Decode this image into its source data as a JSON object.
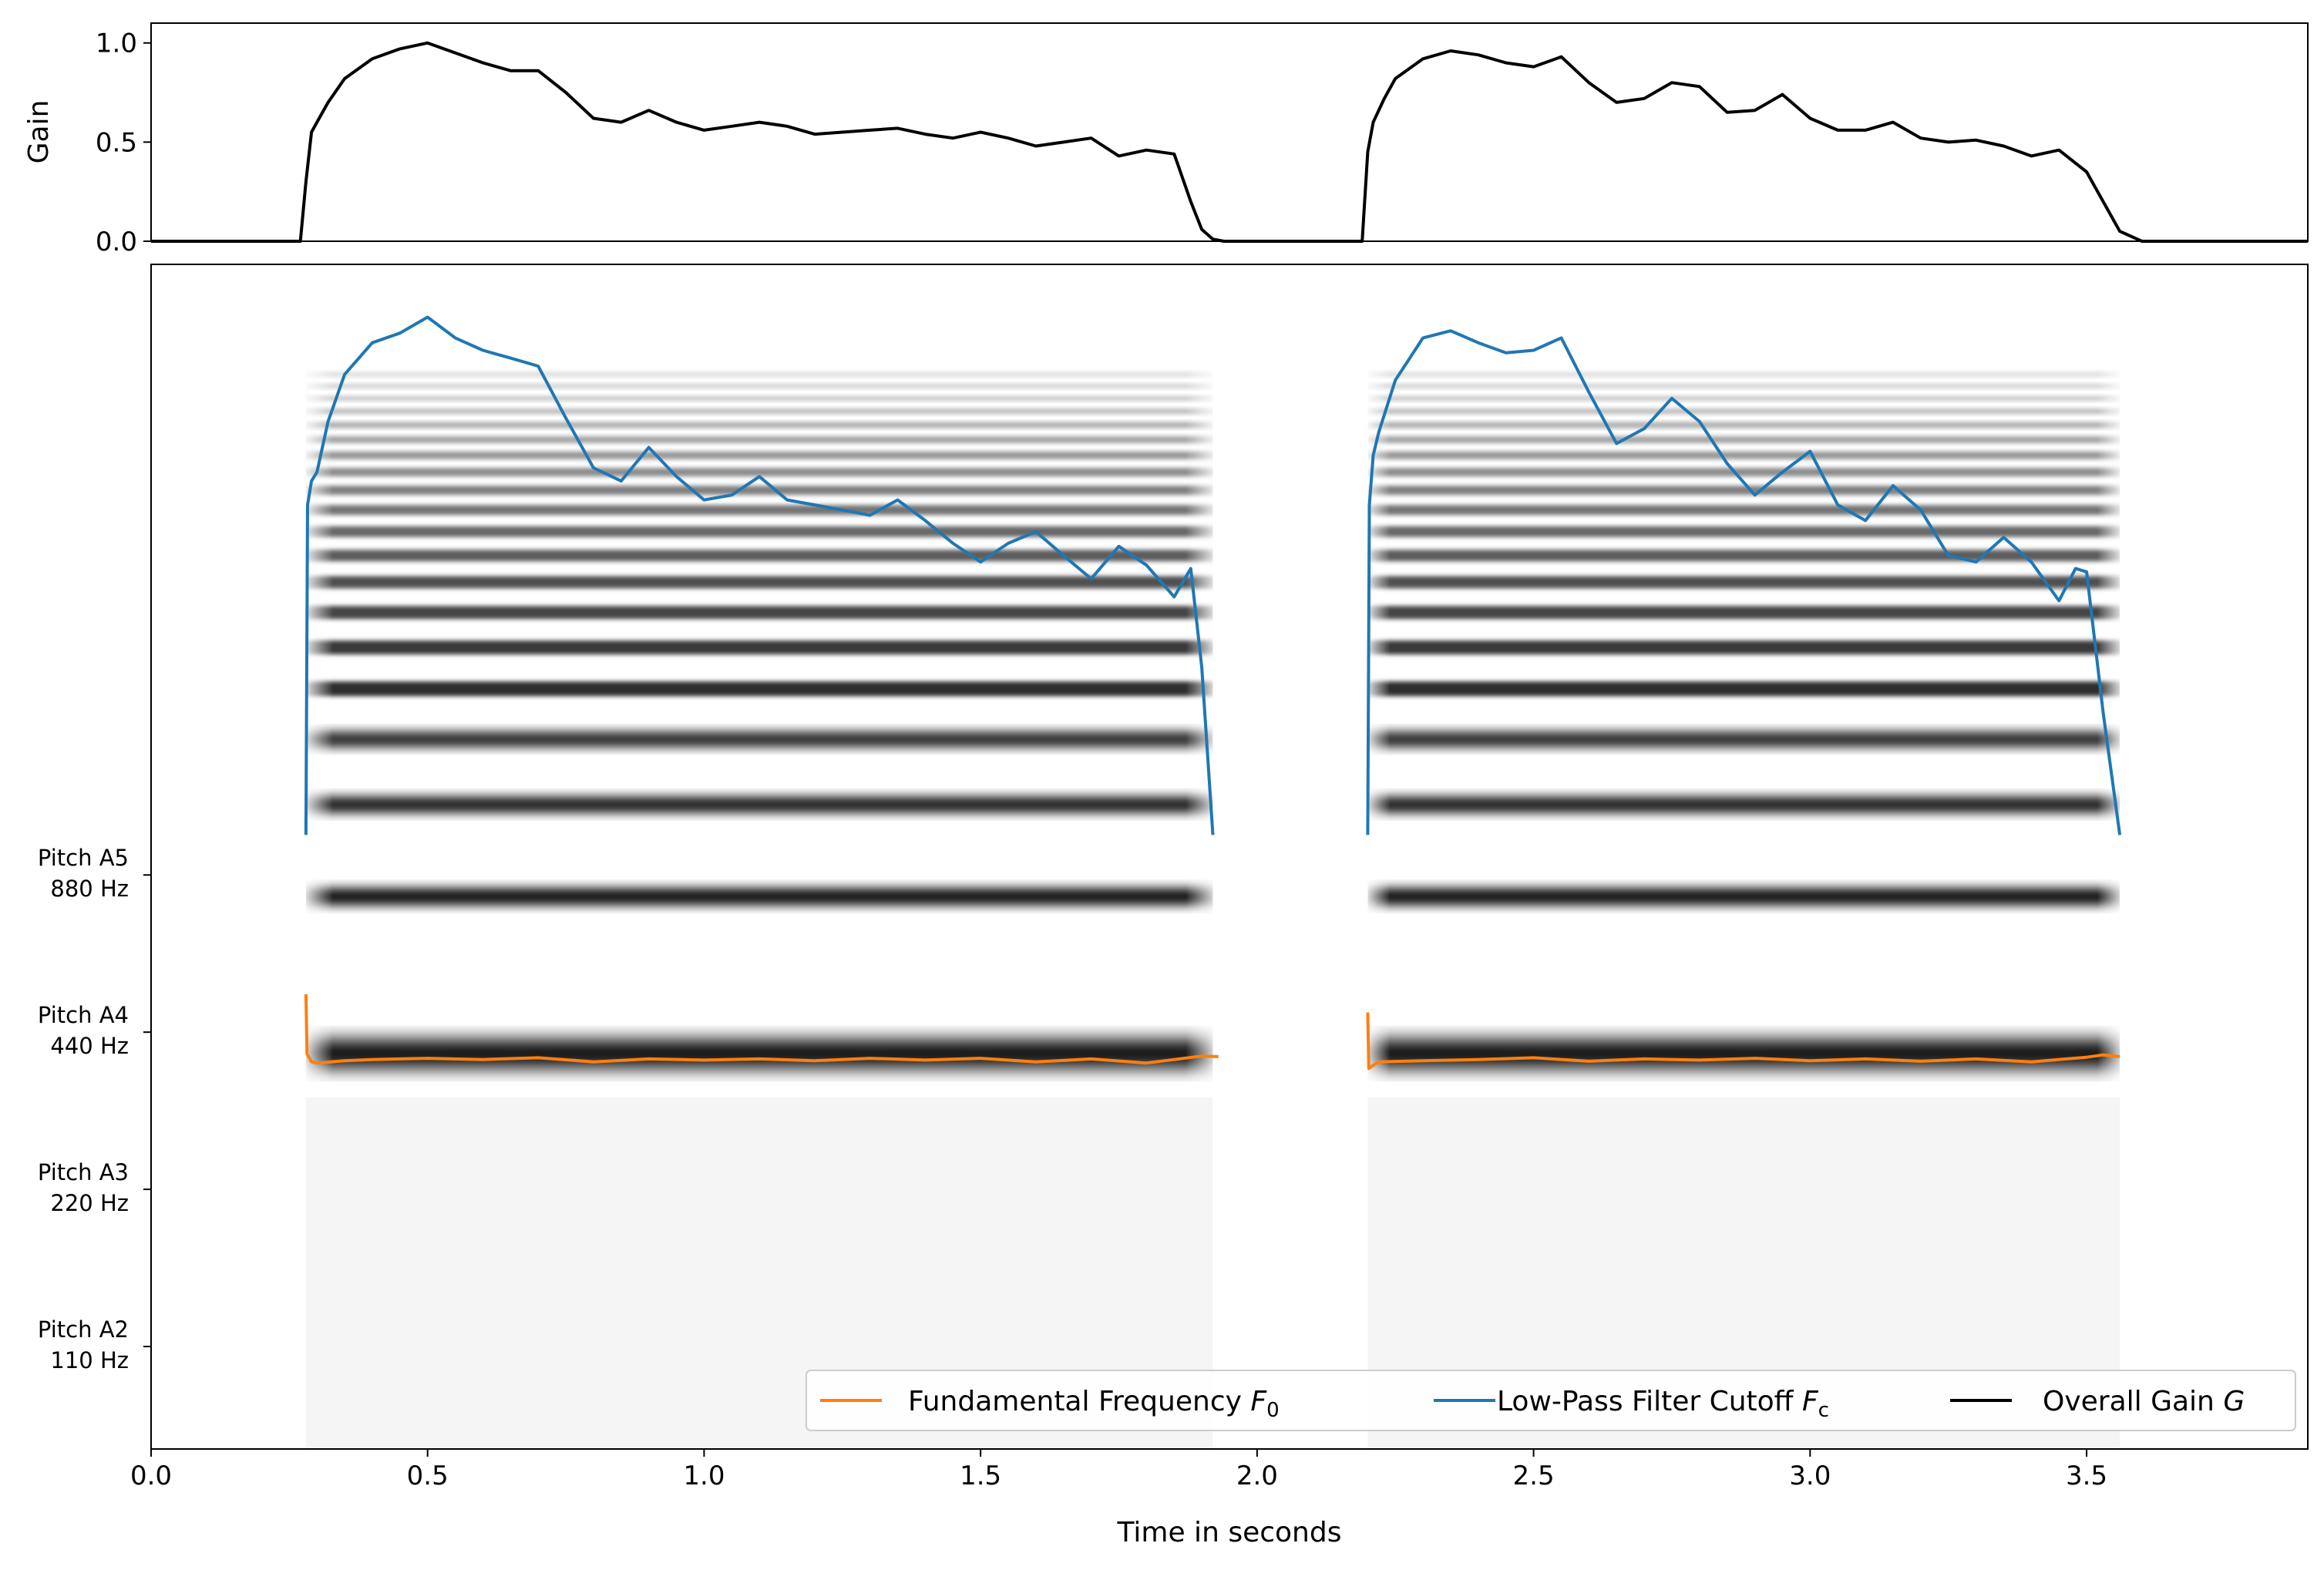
{
  "chart_data": [
    {
      "type": "line",
      "ylabel": "Gain",
      "xlim": [
        0.0,
        3.9
      ],
      "ylim": [
        0.0,
        1.1
      ],
      "yticks": [
        0.0,
        0.5,
        1.0
      ],
      "ytick_labels": [
        "0.0",
        "0.5",
        "1.0"
      ],
      "grid": false,
      "series": [
        {
          "name": "Overall Gain G",
          "color": "#000000",
          "x": [
            0.0,
            0.27,
            0.28,
            0.29,
            0.3,
            0.32,
            0.35,
            0.4,
            0.45,
            0.5,
            0.55,
            0.6,
            0.65,
            0.7,
            0.75,
            0.8,
            0.85,
            0.9,
            0.95,
            1.0,
            1.05,
            1.1,
            1.15,
            1.2,
            1.25,
            1.3,
            1.35,
            1.4,
            1.45,
            1.5,
            1.55,
            1.6,
            1.65,
            1.7,
            1.75,
            1.8,
            1.85,
            1.88,
            1.9,
            1.92,
            1.94,
            2.19,
            2.2,
            2.21,
            2.23,
            2.25,
            2.3,
            2.35,
            2.4,
            2.45,
            2.5,
            2.55,
            2.6,
            2.65,
            2.7,
            2.75,
            2.8,
            2.85,
            2.9,
            2.95,
            3.0,
            3.05,
            3.1,
            3.15,
            3.2,
            3.25,
            3.3,
            3.35,
            3.4,
            3.45,
            3.5,
            3.53,
            3.56,
            3.6,
            3.9
          ],
          "values": [
            0.0,
            0.0,
            0.3,
            0.55,
            0.6,
            0.7,
            0.82,
            0.92,
            0.97,
            1.0,
            0.95,
            0.9,
            0.86,
            0.86,
            0.75,
            0.62,
            0.6,
            0.66,
            0.6,
            0.56,
            0.58,
            0.6,
            0.58,
            0.54,
            0.55,
            0.56,
            0.57,
            0.54,
            0.52,
            0.55,
            0.52,
            0.48,
            0.5,
            0.52,
            0.43,
            0.46,
            0.44,
            0.2,
            0.06,
            0.01,
            0.0,
            0.0,
            0.45,
            0.6,
            0.72,
            0.82,
            0.92,
            0.96,
            0.94,
            0.9,
            0.88,
            0.93,
            0.8,
            0.7,
            0.72,
            0.8,
            0.78,
            0.65,
            0.66,
            0.74,
            0.62,
            0.56,
            0.56,
            0.6,
            0.52,
            0.5,
            0.51,
            0.48,
            0.43,
            0.46,
            0.35,
            0.2,
            0.05,
            0.0,
            0.0
          ]
        }
      ]
    },
    {
      "type": "line",
      "xlabel": "Time in seconds",
      "xlim": [
        0.0,
        3.9
      ],
      "xticks": [
        0.0,
        0.5,
        1.0,
        1.5,
        2.0,
        2.5,
        3.0,
        3.5
      ],
      "xtick_labels": [
        "0.0",
        "0.5",
        "1.0",
        "1.5",
        "2.0",
        "2.5",
        "3.0",
        "3.5"
      ],
      "ylim": [
        70,
        13000
      ],
      "yscale": "log2",
      "yticks": [
        {
          "value": 110,
          "label_line1": "Pitch A2",
          "label_line2": "110 Hz"
        },
        {
          "value": 220,
          "label_line1": "Pitch A3",
          "label_line2": "220 Hz"
        },
        {
          "value": 440,
          "label_line1": "Pitch A4",
          "label_line2": "440 Hz"
        },
        {
          "value": 880,
          "label_line1": "Pitch A5",
          "label_line2": "880 Hz"
        }
      ],
      "grid": false,
      "background": "spectrogram",
      "spectrogram": {
        "colormap": "gray_r",
        "segments": [
          {
            "start": 0.28,
            "end": 1.92
          },
          {
            "start": 2.2,
            "end": 3.56
          }
        ],
        "fundamental_hz": 400,
        "harmonics_shown": 20
      },
      "series": [
        {
          "name": "Fundamental Frequency F_0",
          "color": "#ff7f0e",
          "segments": [
            {
              "x": [
                0.28,
                0.282,
                0.29,
                0.3,
                0.35,
                0.4,
                0.5,
                0.6,
                0.7,
                0.8,
                0.9,
                1.0,
                1.1,
                1.2,
                1.3,
                1.4,
                1.5,
                1.6,
                1.7,
                1.8,
                1.85,
                1.9,
                1.93
              ],
              "values": [
                520,
                400,
                386,
                384,
                388,
                390,
                392,
                390,
                393,
                386,
                391,
                389,
                391,
                388,
                392,
                389,
                392,
                386,
                391,
                384,
                390,
                396,
                395
              ]
            },
            {
              "x": [
                2.2,
                2.202,
                2.21,
                2.22,
                2.3,
                2.4,
                2.5,
                2.6,
                2.7,
                2.8,
                2.9,
                3.0,
                3.1,
                3.2,
                3.3,
                3.4,
                3.5,
                3.53,
                3.56
              ],
              "values": [
                480,
                375,
                380,
                386,
                388,
                390,
                393,
                387,
                391,
                389,
                392,
                388,
                391,
                387,
                391,
                386,
                394,
                398,
                395
              ]
            }
          ]
        },
        {
          "name": "Low-Pass Filter Cutoff F_c",
          "color": "#1f77b4",
          "segments": [
            {
              "x": [
                0.28,
                0.283,
                0.29,
                0.3,
                0.32,
                0.35,
                0.4,
                0.45,
                0.5,
                0.55,
                0.6,
                0.65,
                0.7,
                0.75,
                0.8,
                0.85,
                0.9,
                0.95,
                1.0,
                1.05,
                1.1,
                1.15,
                1.2,
                1.25,
                1.3,
                1.35,
                1.4,
                1.45,
                1.5,
                1.55,
                1.6,
                1.65,
                1.7,
                1.75,
                1.8,
                1.85,
                1.88,
                1.9,
                1.92
              ],
              "values": [
                1050,
                4500,
                5000,
                5200,
                6500,
                8000,
                9200,
                9600,
                10300,
                9400,
                8900,
                8600,
                8300,
                6600,
                5300,
                5000,
                5800,
                5100,
                4600,
                4700,
                5100,
                4600,
                4500,
                4400,
                4300,
                4600,
                4200,
                3800,
                3500,
                3800,
                4000,
                3600,
                3250,
                3750,
                3450,
                3000,
                3400,
                2200,
                1050
              ]
            },
            {
              "x": [
                2.2,
                2.203,
                2.21,
                2.22,
                2.25,
                2.3,
                2.35,
                2.4,
                2.45,
                2.5,
                2.55,
                2.6,
                2.65,
                2.7,
                2.75,
                2.8,
                2.85,
                2.9,
                2.95,
                3.0,
                3.05,
                3.1,
                3.15,
                3.2,
                3.25,
                3.3,
                3.35,
                3.4,
                3.45,
                3.48,
                3.5,
                3.53,
                3.56
              ],
              "values": [
                1050,
                4500,
                5600,
                6200,
                7800,
                9400,
                9700,
                9200,
                8800,
                8900,
                9400,
                7400,
                5900,
                6300,
                7200,
                6500,
                5400,
                4700,
                5200,
                5700,
                4500,
                4200,
                4900,
                4400,
                3600,
                3500,
                3900,
                3500,
                2950,
                3400,
                3350,
                1800,
                1050
              ]
            }
          ]
        },
        {
          "name": "Overall Gain G",
          "color": "#000000",
          "segments": []
        }
      ],
      "legend": {
        "placement": "lower-right",
        "entries": [
          {
            "color": "#ff7f0e",
            "text": "Fundamental Frequency ",
            "math_base": "F",
            "math_sub": "0"
          },
          {
            "color": "#1f77b4",
            "text": "Low-Pass Filter Cutoff ",
            "math_base": "F",
            "math_sub": "c"
          },
          {
            "color": "#000000",
            "text": "Overall Gain ",
            "math_base": "G",
            "math_sub": ""
          }
        ]
      }
    }
  ]
}
